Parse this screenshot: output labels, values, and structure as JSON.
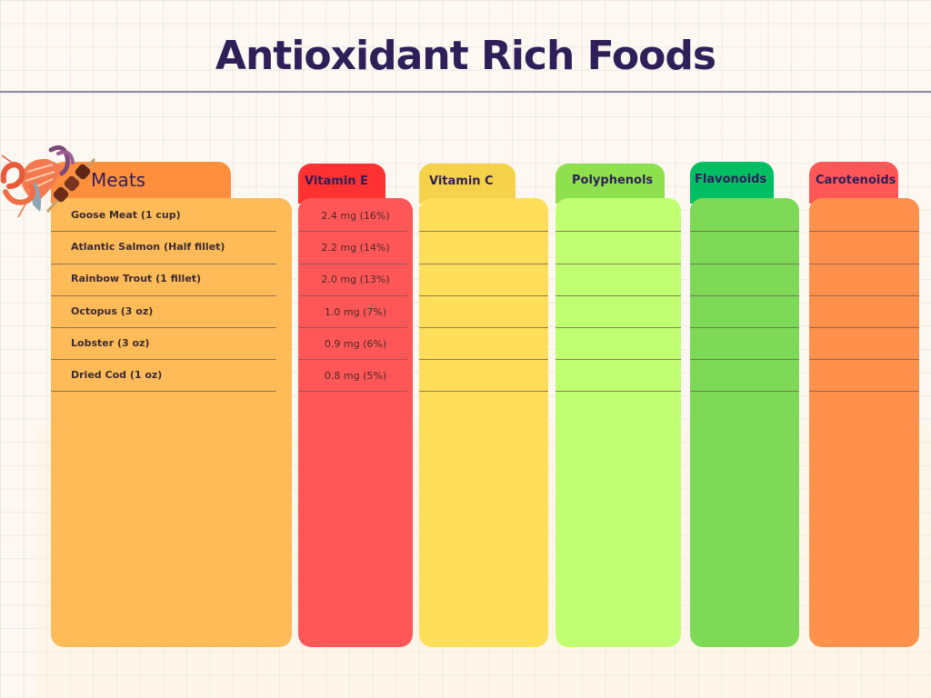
{
  "title": "Antioxidant Rich Foods",
  "categories": {
    "meats": "Meats",
    "vitamin_e": "Vitamin E",
    "vitamin_c": "Vitamin C",
    "polyphenols": "Polyphenols",
    "flavonoids": "Flavonoids",
    "carotenoids": "Carotenoids"
  },
  "foods": [
    {
      "name": "Goose Meat (1 cup)",
      "vitamin_e": "2.4 mg (16%)"
    },
    {
      "name": "Atlantic Salmon (Half fillet)",
      "vitamin_e": "2.2 mg (14%)"
    },
    {
      "name": "Rainbow Trout (1 fillet)",
      "vitamin_e": "2.0 mg (13%)"
    },
    {
      "name": "Octopus (3 oz)",
      "vitamin_e": "1.0 mg (7%)"
    },
    {
      "name": "Lobster (3 oz)",
      "vitamin_e": "0.9 mg (6%)"
    },
    {
      "name": "Dried Cod (1 oz)",
      "vitamin_e": "0.8 mg (5%)"
    }
  ],
  "colors": {
    "meats_tab": "#ff8f3c",
    "meats_panel": "#ffbb57",
    "vite_tab": "#ff3131",
    "vite_panel": "#ff5757",
    "vitc_tab": "#f6d24b",
    "vitc_panel": "#ffde59",
    "poly_tab": "#8ee04f",
    "poly_panel": "#c1ff72",
    "flav_tab": "#00bf63",
    "flav_panel": "#7ed957",
    "caro_tab": "#ff5757",
    "caro_panel": "#ff914d"
  },
  "icons": {
    "illustration": "seafood-meat-illustration"
  }
}
